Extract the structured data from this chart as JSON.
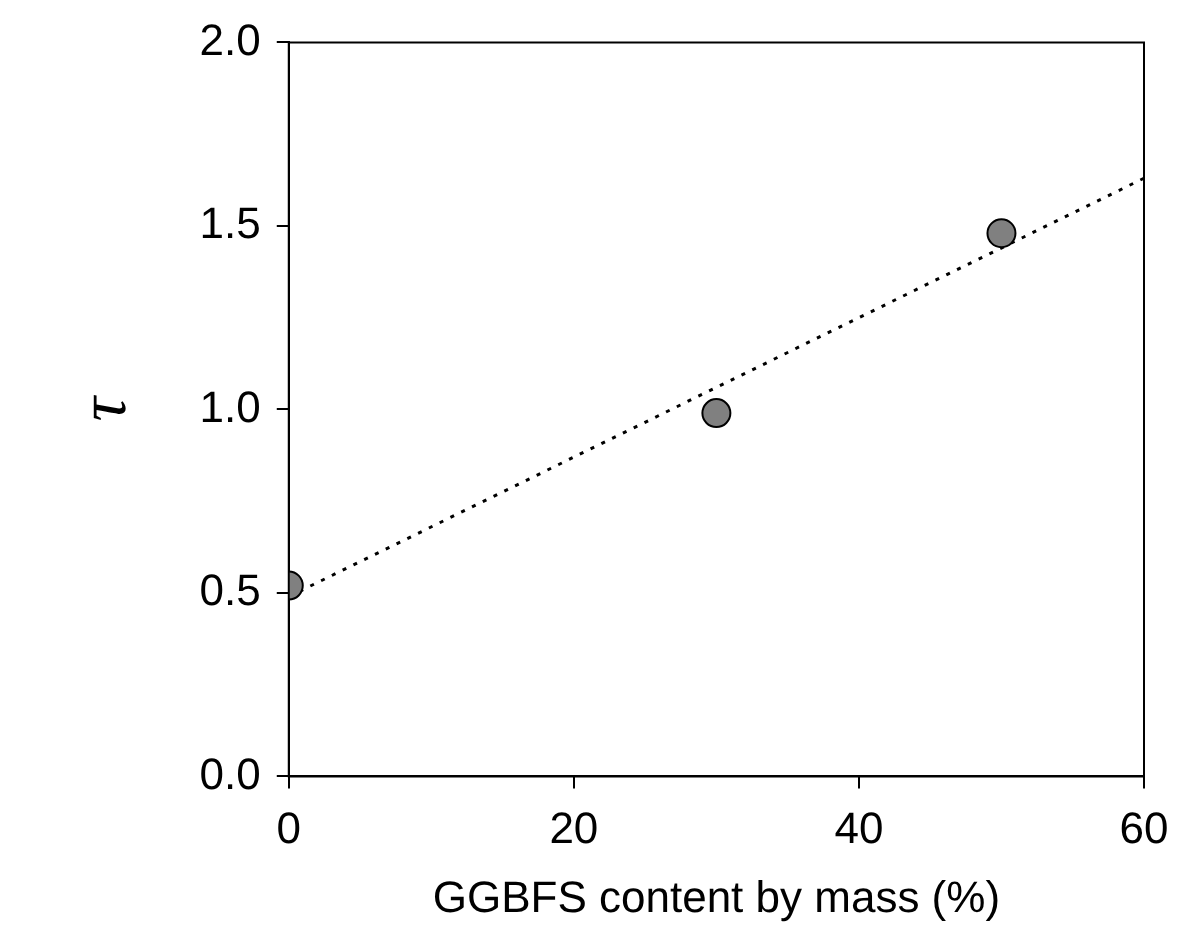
{
  "chart_data": {
    "type": "scatter",
    "xlabel": "GGBFS content by mass (%)",
    "ylabel": "τ",
    "xlim": [
      0,
      60
    ],
    "xticks": [
      0,
      20,
      40,
      60
    ],
    "ylim": [
      0,
      2
    ],
    "yticks": [
      {
        "value": 0,
        "label": "0.0"
      },
      {
        "value": 0.5,
        "label": "0.5"
      },
      {
        "value": 1,
        "label": "1.0"
      },
      {
        "value": 1.5,
        "label": "1.5"
      },
      {
        "value": 2,
        "label": "2.0"
      }
    ],
    "grid": false,
    "legend": false,
    "series": [
      {
        "color": "#808080",
        "marker": "circle",
        "x": [
          0,
          30,
          50
        ],
        "values": [
          0.52,
          0.99,
          1.48
        ]
      },
      {
        "type": "line",
        "color": "#000000",
        "marker": "none",
        "line_style": "dotted",
        "x": [
          0,
          60
        ],
        "values": [
          0.49,
          1.63
        ]
      }
    ]
  }
}
